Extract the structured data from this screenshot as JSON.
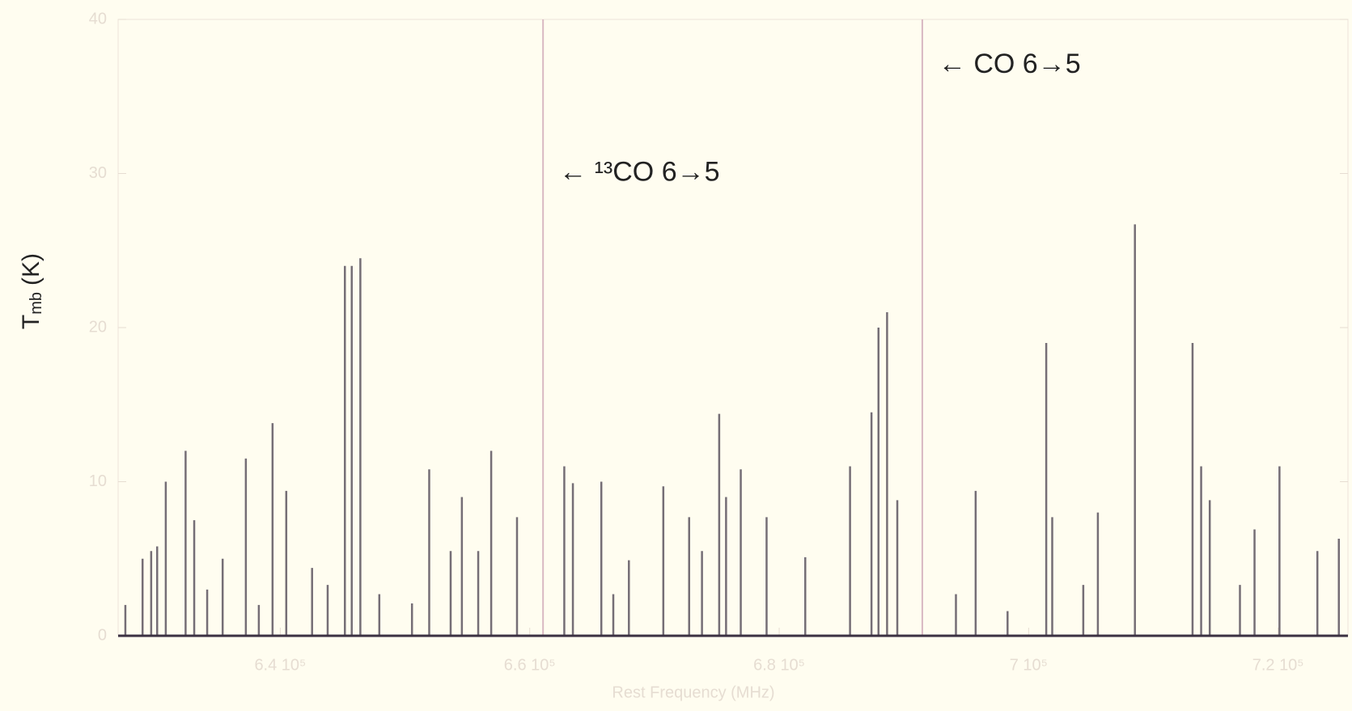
{
  "chart_data": {
    "type": "stem",
    "x_label": "Rest Frequency (MHz)",
    "y_label": {
      "symbol": "T",
      "subscript": "mb",
      "unit": "(K)"
    },
    "x": [
      627580,
      628960,
      629650,
      630130,
      630820,
      632410,
      633100,
      634140,
      635380,
      637240,
      638280,
      639380,
      640480,
      642550,
      643800,
      645180,
      645730,
      646420,
      647940,
      650560,
      651940,
      653660,
      654560,
      655870,
      656910,
      658980,
      662770,
      663460,
      665740,
      666700,
      667950,
      670710,
      672780,
      673810,
      675190,
      675740,
      676920,
      678990,
      682090,
      685680,
      687400,
      687960,
      688650,
      689470,
      694170,
      695750,
      698310,
      701410,
      701890,
      704380,
      705550,
      708520,
      713140,
      713830,
      714520,
      716940,
      718110,
      720110,
      723150,
      724870
    ],
    "values": [
      2,
      5,
      5.5,
      5.8,
      10,
      12,
      7.5,
      3,
      5,
      11.5,
      2,
      13.8,
      9.4,
      4.4,
      3.3,
      24,
      24,
      24.5,
      2.7,
      2.1,
      10.8,
      5.5,
      9,
      5.5,
      12,
      7.7,
      11,
      9.9,
      10,
      2.7,
      4.9,
      9.7,
      7.7,
      5.5,
      14.4,
      9,
      10.8,
      7.7,
      5.1,
      11,
      14.5,
      20,
      21,
      8.8,
      2.7,
      9.4,
      1.6,
      19,
      7.7,
      3.3,
      8,
      26.7,
      19,
      11,
      8.8,
      3.3,
      6.9,
      11,
      5.5,
      6.3
    ],
    "color": "#3b3142",
    "markers": [
      {
        "x": 661067,
        "label": "← ¹³CO  6→5",
        "y": 30
      },
      {
        "x": 691473,
        "label": "← CO  6→5",
        "y": 37
      }
    ],
    "xlim": [
      627000,
      725600
    ],
    "ylim": [
      0,
      40
    ],
    "xticks": [
      {
        "value": 640000,
        "label": "6.4 10⁵"
      },
      {
        "value": 660000,
        "label": "6.6 10⁵"
      },
      {
        "value": 680000,
        "label": "6.8 10⁵"
      },
      {
        "value": 700000,
        "label": "7 10⁵"
      },
      {
        "value": 720000,
        "label": "7.2 10⁵"
      }
    ],
    "yticks": [
      0,
      10,
      20,
      30,
      40
    ],
    "grid": false
  }
}
